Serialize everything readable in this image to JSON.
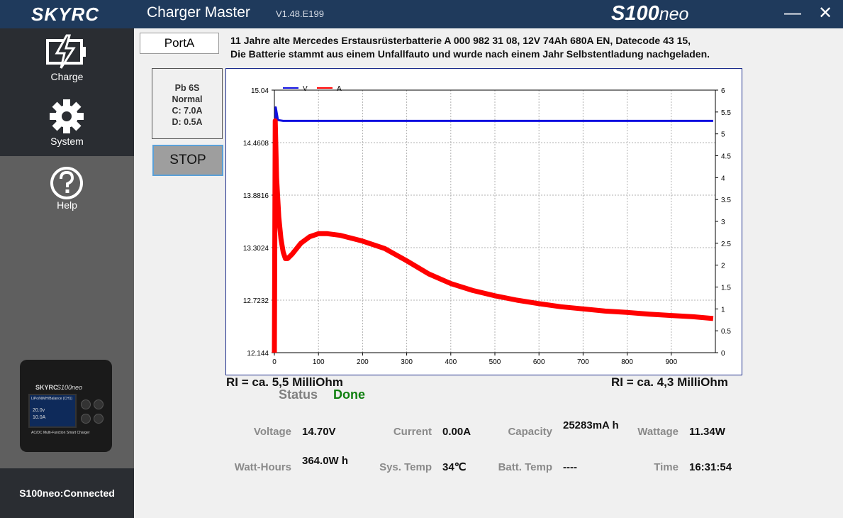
{
  "titlebar": {
    "brand": "SKYRC",
    "app_title": "Charger Master",
    "version": "V1.48.E199",
    "model": "S100",
    "model_suffix": "neo",
    "minimize_glyph": "—",
    "close_glyph": "✕"
  },
  "sidebar": {
    "items": [
      {
        "label": "Charge",
        "icon": "battery-charge-icon"
      },
      {
        "label": "System",
        "icon": "gear-icon"
      },
      {
        "label": "Help",
        "icon": "help-icon"
      }
    ],
    "device": {
      "brand": "SKYRC",
      "model": "S100neo",
      "screen_line1": "LiPo/NiMH/Balance (CH1)",
      "screen_v": "20.0v",
      "screen_a": "10.0A",
      "footer": "AC/DC Multi-Function Smart Charger"
    },
    "connection_status": "S100neo:Connected"
  },
  "main": {
    "port_tab": "PortA",
    "note_line1": "11 Jahre alte Mercedes Erstausrüsterbatterie A 000 982 31 08, 12V 74Ah 680A EN, Datecode 43 15,",
    "note_line2": "Die Batterie stammt aus einem Unfallfauto und wurde nach einem Jahr Selbstentladung nachgeladen.",
    "info": {
      "type": "Pb 6S",
      "mode": "Normal",
      "charge": "C: 7.0A",
      "discharge": "D: 0.5A"
    },
    "stop_label": "STOP",
    "ri_left": "RI = ca. 5,5 MilliOhm",
    "ri_right": "RI = ca. 4,3 MilliOhm",
    "status_label": "Status",
    "status_value": "Done",
    "status_color": "#108010",
    "metrics": {
      "voltage_label": "Voltage",
      "voltage": "14.70V",
      "current_label": "Current",
      "current": "0.00A",
      "capacity_label": "Capacity",
      "capacity": "25283mA h",
      "wattage_label": "Wattage",
      "wattage": "11.34W",
      "watthours_label": "Watt-Hours",
      "watthours": "364.0W h",
      "systemp_label": "Sys. Temp",
      "systemp": "34℃",
      "batttemp_label": "Batt. Temp",
      "batttemp": "----",
      "time_label": "Time",
      "time": "16:31:54"
    }
  },
  "chart_data": {
    "type": "line",
    "xlim": [
      0,
      1000
    ],
    "x_ticks": [
      0,
      100,
      200,
      300,
      400,
      500,
      600,
      700,
      800,
      900
    ],
    "y_left_lim": [
      12.144,
      15.04
    ],
    "y_left_ticks": [
      12.144,
      12.7232,
      13.3024,
      13.8816,
      14.4608,
      15.04
    ],
    "y_left_tick_labels": [
      "12.144",
      "12.7232",
      "13.3024",
      "13.8816",
      "14.4608",
      "15.04"
    ],
    "y_right_lim": [
      0,
      6
    ],
    "y_right_ticks": [
      0,
      0.5,
      1,
      1.5,
      2,
      2.5,
      3,
      3.5,
      4,
      4.5,
      5,
      5.5,
      6
    ],
    "y_right_tick_labels": [
      "0",
      "0.5",
      "1",
      "1.5",
      "2",
      "2.5",
      "3",
      "3.5",
      "4",
      "4.5",
      "5",
      "5.5",
      "6"
    ],
    "grid": true,
    "legend_position": "top-left",
    "series": [
      {
        "name": "V",
        "axis": "left",
        "color": "#1010e0",
        "x": [
          0,
          3,
          8,
          20,
          100,
          300,
          500,
          700,
          900,
          995
        ],
        "y": [
          12.144,
          14.85,
          14.71,
          14.7,
          14.7,
          14.7,
          14.7,
          14.7,
          14.7,
          14.7
        ]
      },
      {
        "name": "A",
        "axis": "right",
        "color": "#ff0000",
        "x": [
          0,
          2,
          5,
          10,
          15,
          20,
          25,
          30,
          40,
          60,
          80,
          100,
          120,
          150,
          200,
          250,
          300,
          350,
          400,
          450,
          500,
          550,
          600,
          650,
          700,
          750,
          800,
          850,
          900,
          950,
          995
        ],
        "y": [
          0,
          5.3,
          4.0,
          3.1,
          2.6,
          2.3,
          2.15,
          2.15,
          2.25,
          2.5,
          2.65,
          2.72,
          2.72,
          2.68,
          2.55,
          2.38,
          2.1,
          1.8,
          1.58,
          1.42,
          1.3,
          1.2,
          1.12,
          1.05,
          1.0,
          0.95,
          0.92,
          0.88,
          0.85,
          0.82,
          0.78
        ]
      }
    ]
  }
}
